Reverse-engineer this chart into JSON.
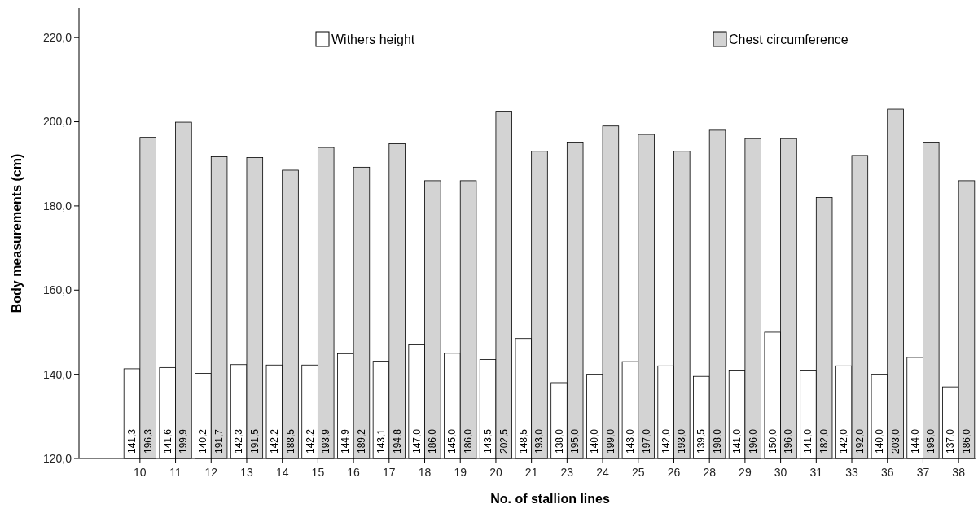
{
  "chart_data": {
    "type": "bar",
    "xlabel": "No. of stallion lines",
    "ylabel": "Body measurements (cm)",
    "categories": [
      "10",
      "11",
      "12",
      "13",
      "14",
      "15",
      "16",
      "17",
      "18",
      "19",
      "20",
      "21",
      "23",
      "24",
      "25",
      "26",
      "28",
      "29",
      "30",
      "31",
      "33",
      "36",
      "37",
      "38"
    ],
    "series": [
      {
        "name": "Withers height",
        "color": "#ffffff",
        "values": [
          141.3,
          141.6,
          140.2,
          142.3,
          142.2,
          142.2,
          144.9,
          143.1,
          147.0,
          145.0,
          143.5,
          148.5,
          138.0,
          140.0,
          143.0,
          142.0,
          139.5,
          141.0,
          150.0,
          141.0,
          142.0,
          140.0,
          144.0,
          137.0
        ],
        "value_labels": [
          "141,3",
          "141,6",
          "140,2",
          "142,3",
          "142,2",
          "142,2",
          "144,9",
          "143,1",
          "147,0",
          "145,0",
          "143,5",
          "148,5",
          "138,0",
          "140,0",
          "143,0",
          "142,0",
          "139,5",
          "141,0",
          "150,0",
          "141,0",
          "142,0",
          "140,0",
          "144,0",
          "137,0"
        ]
      },
      {
        "name": "Chest circumference",
        "color": "#d3d3d3",
        "values": [
          196.3,
          199.9,
          191.7,
          191.5,
          188.5,
          193.9,
          189.2,
          194.8,
          186.0,
          186.0,
          202.5,
          193.0,
          195.0,
          199.0,
          197.0,
          193.0,
          198.0,
          196.0,
          196.0,
          182.0,
          192.0,
          203.0,
          195.0,
          186.0
        ],
        "value_labels": [
          "196,3",
          "199,9",
          "191,7",
          "191,5",
          "188,5",
          "193,9",
          "189,2",
          "194,8",
          "186,0",
          "186,0",
          "202,5",
          "193,0",
          "195,0",
          "199,0",
          "197,0",
          "193,0",
          "198,0",
          "196,0",
          "196,0",
          "182,0",
          "192,0",
          "203,0",
          "195,0",
          "186,0"
        ]
      }
    ],
    "ylim": [
      120,
      227
    ],
    "yticks": [
      {
        "value": 120,
        "label": "120,0"
      },
      {
        "value": 140,
        "label": "140,0"
      },
      {
        "value": 160,
        "label": "160,0"
      },
      {
        "value": 180,
        "label": "180,0"
      },
      {
        "value": 200,
        "label": "200,0"
      },
      {
        "value": 220,
        "label": "220,0"
      }
    ],
    "legend": "top",
    "grid": false
  }
}
